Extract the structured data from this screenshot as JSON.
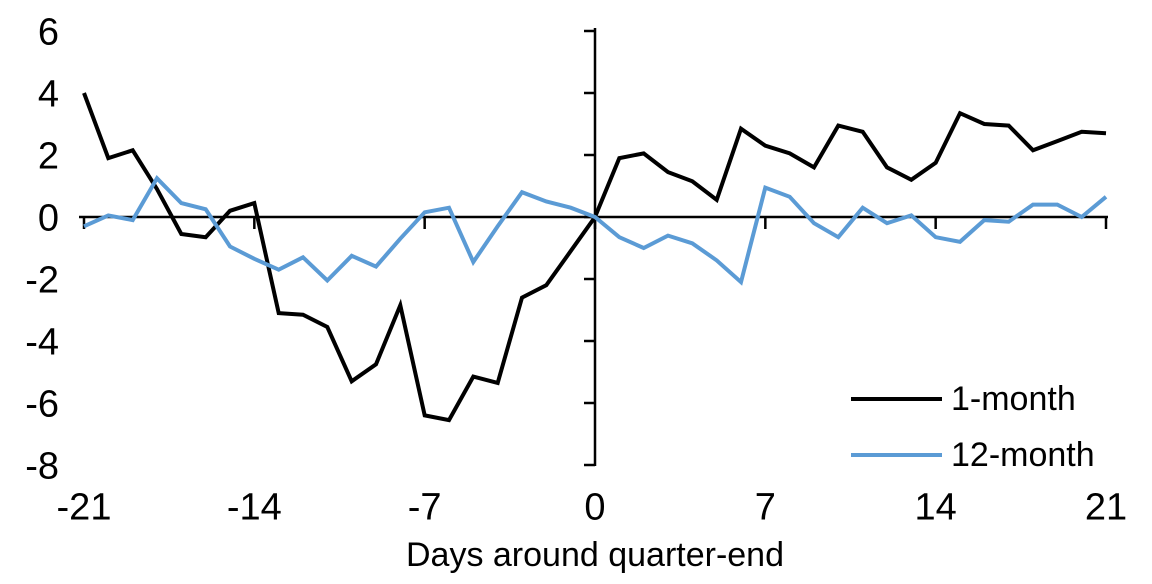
{
  "chart_data": {
    "type": "line",
    "xlabel": "Days around quarter-end",
    "ylabel": "",
    "xlim": [
      -21,
      21
    ],
    "ylim": [
      -8,
      6
    ],
    "x_ticks": [
      -21,
      -14,
      -7,
      0,
      7,
      14,
      21
    ],
    "y_ticks": [
      6,
      4,
      2,
      0,
      -2,
      -4,
      -6,
      -8
    ],
    "grid": false,
    "axis_color": "#000000",
    "legend_position": "inside-bottom-right",
    "x": [
      -21,
      -20,
      -19,
      -18,
      -17,
      -16,
      -15,
      -14,
      -13,
      -12,
      -11,
      -10,
      -9,
      -8,
      -7,
      -6,
      -5,
      -4,
      -3,
      -2,
      -1,
      0,
      1,
      2,
      3,
      4,
      5,
      6,
      7,
      8,
      9,
      10,
      11,
      12,
      13,
      14,
      15,
      16,
      17,
      18,
      19,
      20,
      21
    ],
    "series": [
      {
        "name": "1-month",
        "color": "#000000",
        "values": [
          4.0,
          1.9,
          2.15,
          0.9,
          -0.55,
          -0.65,
          0.2,
          0.45,
          -3.1,
          -3.15,
          -3.55,
          -5.3,
          -4.75,
          -2.85,
          -6.4,
          -6.55,
          -5.15,
          -5.35,
          -2.6,
          -2.2,
          -1.1,
          0.0,
          1.9,
          2.05,
          1.45,
          1.15,
          0.55,
          2.85,
          2.3,
          2.05,
          1.6,
          2.95,
          2.75,
          1.6,
          1.2,
          1.75,
          3.35,
          3.0,
          2.95,
          2.15,
          2.45,
          2.75,
          2.7
        ]
      },
      {
        "name": "12-month",
        "color": "#5B9BD5",
        "values": [
          -0.3,
          0.05,
          -0.1,
          1.25,
          0.45,
          0.25,
          -0.95,
          -1.35,
          -1.7,
          -1.3,
          -2.05,
          -1.25,
          -1.6,
          -0.7,
          0.15,
          0.3,
          -1.45,
          -0.3,
          0.8,
          0.5,
          0.3,
          0.0,
          -0.65,
          -1.0,
          -0.6,
          -0.85,
          -1.4,
          -2.1,
          0.95,
          0.65,
          -0.2,
          -0.65,
          0.3,
          -0.2,
          0.05,
          -0.65,
          -0.8,
          -0.1,
          -0.15,
          0.4,
          0.4,
          0.0,
          0.65
        ]
      }
    ]
  }
}
